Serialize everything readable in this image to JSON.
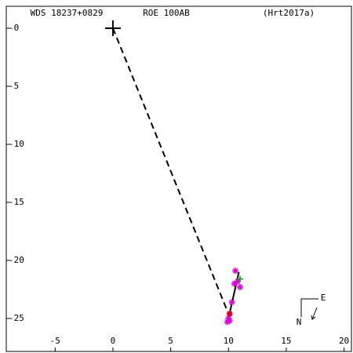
{
  "chart_data": {
    "type": "scatter",
    "title": "WDS 18237+0829",
    "subtitle": "ROE 100AB",
    "reference": "(Hrt2017a)",
    "xlim": [
      -9.23,
      20.64
    ],
    "ylim": [
      -27.84,
      1.89
    ],
    "xticks": [
      -5,
      0,
      5,
      10,
      15,
      20
    ],
    "yticks": [
      {
        "value": 0,
        "label": "-0"
      },
      -5,
      -10,
      -15,
      -20,
      -25
    ],
    "primary": {
      "x": 0,
      "y": 0
    },
    "separation": {
      "x": [
        0,
        10.0
      ],
      "y": [
        0,
        -24.6
      ]
    },
    "orbit": {
      "color": "#000000",
      "x": [
        10.0,
        10.9
      ],
      "y": [
        -25.0,
        -21.0
      ]
    },
    "observations": {
      "color": "#e000e0",
      "x": [
        10.6,
        10.8,
        10.5,
        11.0,
        10.3,
        10.1,
        10.0,
        9.9,
        10.1
      ],
      "y": [
        -20.9,
        -21.8,
        -22.0,
        -22.3,
        -23.6,
        -24.6,
        -25.0,
        -25.3,
        -25.2
      ]
    },
    "predicted": {
      "color": "#00a000",
      "x": 11.0,
      "y": -21.6
    },
    "current": {
      "color": "#e00000",
      "x": 10.1,
      "y": -24.6
    },
    "compass": {
      "north": "N",
      "east": "E"
    }
  }
}
